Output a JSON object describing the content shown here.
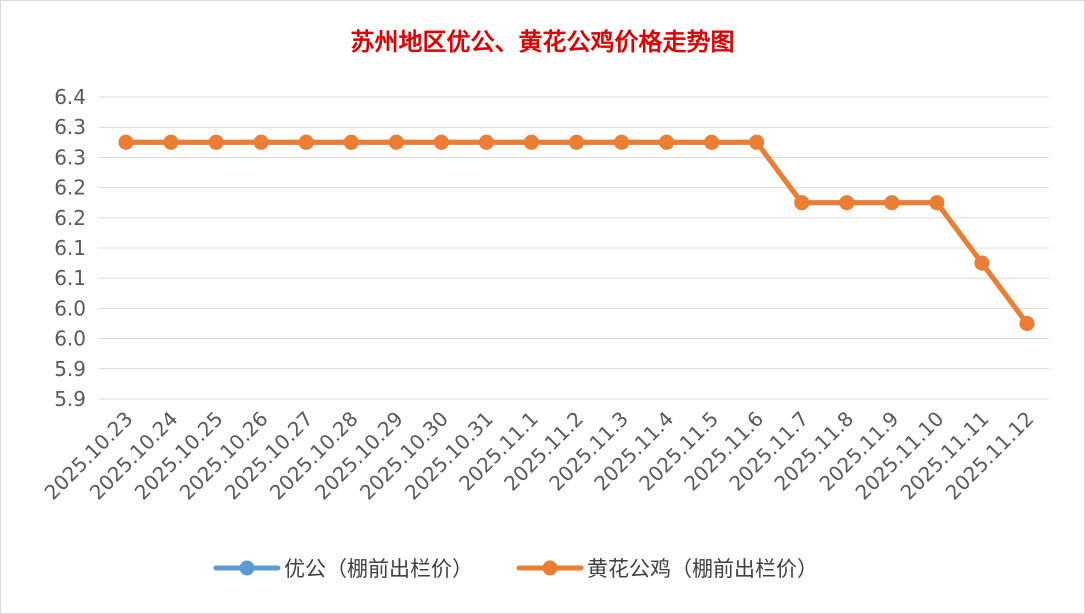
{
  "chart_data": {
    "type": "line",
    "title": "苏州地区优公、黄花公鸡价格走势图",
    "xlabel": "",
    "ylabel": "",
    "categories": [
      "2025.10.23",
      "2025.10.24",
      "2025.10.25",
      "2025.10.26",
      "2025.10.27",
      "2025.10.28",
      "2025.10.29",
      "2025.10.30",
      "2025.10.31",
      "2025.11.1",
      "2025.11.2",
      "2025.11.3",
      "2025.11.4",
      "2025.11.5",
      "2025.11.6",
      "2025.11.7",
      "2025.11.8",
      "2025.11.9",
      "2025.11.10",
      "2025.11.11",
      "2025.11.12"
    ],
    "y_ticks": [
      "5.9",
      "5.9",
      "6.0",
      "6.0",
      "6.1",
      "6.1",
      "6.2",
      "6.2",
      "6.3",
      "6.3",
      "6.4"
    ],
    "ylim": [
      5.85,
      6.35
    ],
    "grid": true,
    "legend_position": "bottom",
    "series": [
      {
        "name": "优公（棚前出栏价）",
        "color": "#5b9bd5",
        "values": [
          6.3,
          6.3,
          6.3,
          6.3,
          6.3,
          6.3,
          6.3,
          6.3,
          6.3,
          6.3,
          6.3,
          6.3,
          6.3,
          6.3,
          6.3,
          6.2,
          6.2,
          6.2,
          6.2,
          6.1,
          6.0
        ]
      },
      {
        "name": "黄花公鸡（棚前出栏价）",
        "color": "#ed7d31",
        "values": [
          6.3,
          6.3,
          6.3,
          6.3,
          6.3,
          6.3,
          6.3,
          6.3,
          6.3,
          6.3,
          6.3,
          6.3,
          6.3,
          6.3,
          6.3,
          6.2,
          6.2,
          6.2,
          6.2,
          6.1,
          6.0
        ]
      }
    ]
  }
}
